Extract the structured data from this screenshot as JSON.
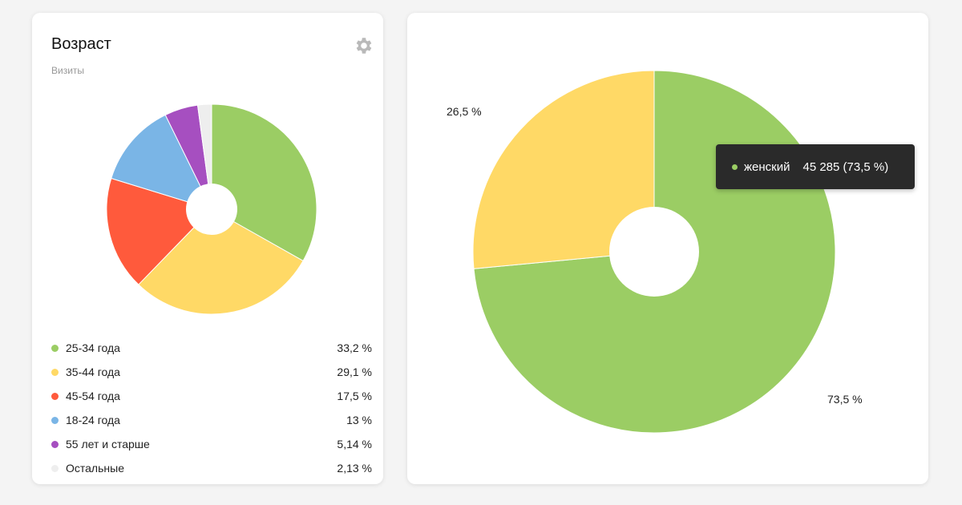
{
  "age_widget": {
    "title": "Возраст",
    "subtitle": "Визиты",
    "settings_icon": "gear-icon",
    "chart_data": {
      "type": "pie",
      "donut": true,
      "categories": [
        "25-34 года",
        "35-44 года",
        "45-54 года",
        "18-24 года",
        "55 лет и старше",
        "Остальные"
      ],
      "values": [
        33.2,
        29.1,
        17.5,
        13,
        5.14,
        2.13
      ],
      "value_labels": [
        "33,2 %",
        "29,1 %",
        "17,5 %",
        "13 %",
        "5,14 %",
        "2,13 %"
      ],
      "colors": [
        "#9bcd64",
        "#ffd966",
        "#ff5a3c",
        "#7ab5e6",
        "#a64fc0",
        "#eeeeee"
      ],
      "legend_position": "bottom"
    }
  },
  "gender_widget": {
    "chart_data": {
      "type": "pie",
      "donut": true,
      "categories": [
        "женский",
        ""
      ],
      "values": [
        73.5,
        26.5
      ],
      "value_labels": [
        "73,5 %",
        "26,5 %"
      ],
      "colors": [
        "#9bcd64",
        "#ffd966"
      ],
      "tooltip": {
        "name": "женский",
        "value": "45 285 (73,5 %)",
        "color": "#9bcd64"
      }
    }
  }
}
